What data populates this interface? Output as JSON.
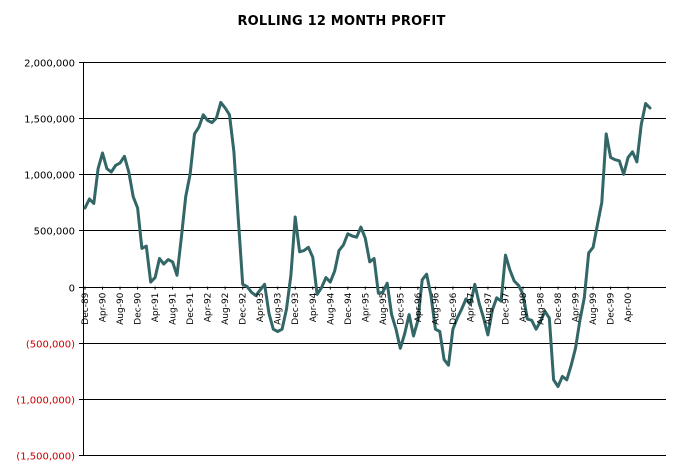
{
  "chart_data": {
    "type": "line",
    "title": "ROLLING 12 MONTH PROFIT",
    "xlabel": "",
    "ylabel": "",
    "ylim": [
      -1500000,
      2000000
    ],
    "y_ticks": [
      2000000,
      1500000,
      1000000,
      500000,
      0,
      -500000,
      -1000000,
      -1500000
    ],
    "y_tick_labels": [
      "2,000,000",
      "1,500,000",
      "1,000,000",
      "500,000",
      "0",
      "(500,000)",
      "(1,000,000)",
      "(1,500,000)"
    ],
    "x_tick_labels": [
      "Dec-89",
      "Apr-90",
      "Aug-90",
      "Dec-90",
      "Apr-91",
      "Aug-91",
      "Dec-91",
      "Apr-92",
      "Aug-92",
      "Dec-92",
      "Apr-93",
      "Aug-93",
      "Dec-93",
      "Apr-94",
      "Aug-94",
      "Dec-94",
      "Apr-95",
      "Aug-95",
      "Dec-95",
      "Apr-96",
      "Aug-96",
      "Dec-96",
      "Apr-97",
      "Aug-97",
      "Dec-97",
      "Apr-98",
      "Aug-98",
      "Dec-98",
      "Apr-99",
      "Aug-99",
      "Dec-99",
      "Apr-00"
    ],
    "grid": "horizontal",
    "line_color": "#336666",
    "negative_label_color": "#cc0000",
    "series": [
      {
        "values": [
          700000,
          780000,
          740000,
          1050000,
          1190000,
          1050000,
          1020000,
          1080000,
          1100000,
          1160000,
          1020000,
          800000,
          700000,
          340000,
          360000,
          40000,
          80000,
          250000,
          200000,
          240000,
          220000,
          100000,
          440000,
          800000,
          1000000,
          1360000,
          1420000,
          1530000,
          1480000,
          1460000,
          1500000,
          1640000,
          1590000,
          1530000,
          1200000,
          600000,
          20000,
          0,
          -50000,
          -80000,
          -30000,
          20000,
          -240000,
          -380000,
          -400000,
          -380000,
          -200000,
          100000,
          620000,
          310000,
          320000,
          350000,
          260000,
          -70000,
          -10000,
          80000,
          40000,
          140000,
          320000,
          370000,
          470000,
          450000,
          440000,
          530000,
          430000,
          220000,
          250000,
          -60000,
          -50000,
          30000,
          -250000,
          -380000,
          -550000,
          -420000,
          -250000,
          -440000,
          -300000,
          60000,
          110000,
          -80000,
          -380000,
          -400000,
          -650000,
          -700000,
          -380000,
          -280000,
          -200000,
          -110000,
          -160000,
          20000,
          -150000,
          -280000,
          -430000,
          -210000,
          -100000,
          -130000,
          280000,
          150000,
          50000,
          10000,
          -70000,
          -290000,
          -300000,
          -380000,
          -310000,
          -220000,
          -280000,
          -830000,
          -890000,
          -800000,
          -830000,
          -700000,
          -550000,
          -300000,
          -100000,
          300000,
          350000,
          550000,
          750000,
          1360000,
          1150000,
          1130000,
          1120000,
          1000000,
          1150000,
          1200000,
          1110000,
          1440000,
          1630000,
          1590000
        ]
      }
    ]
  }
}
